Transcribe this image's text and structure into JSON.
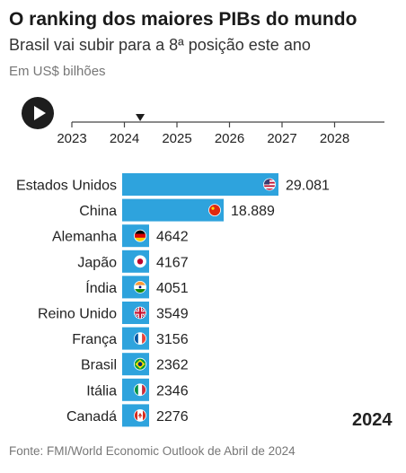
{
  "header": {
    "title": "O ranking dos maiores PIBs do mundo",
    "subtitle": "Brasil vai subir para a 8ª posição este ano",
    "units": "Em US$ bilhões"
  },
  "timeline": {
    "years": [
      "2023",
      "2024",
      "2025",
      "2026",
      "2027",
      "2028"
    ],
    "current_year": "2024",
    "progress_year": 2024.3
  },
  "chart_data": {
    "type": "bar",
    "orientation": "horizontal",
    "title": "O ranking dos maiores PIBs do mundo",
    "subtitle": "Brasil vai subir para a 8ª posição este ano",
    "unit_label": "Em US$ bilhões",
    "categories": [
      "Estados Unidos",
      "China",
      "Alemanha",
      "Japão",
      "Índia",
      "Reino Unido",
      "França",
      "Brasil",
      "Itália",
      "Canadá"
    ],
    "values": [
      29081,
      18889,
      4642,
      4167,
      4051,
      3549,
      3156,
      2362,
      2346,
      2276
    ],
    "value_labels": [
      "29.081",
      "18.889",
      "4642",
      "4167",
      "4051",
      "3549",
      "3156",
      "2362",
      "2346",
      "2276"
    ],
    "flag_icons": [
      "us-flag-icon",
      "china-flag-icon",
      "germany-flag-icon",
      "japan-flag-icon",
      "india-flag-icon",
      "uk-flag-icon",
      "france-flag-icon",
      "brazil-flag-icon",
      "italy-flag-icon",
      "canada-flag-icon"
    ],
    "bar_color": "#2ea3dd",
    "year": "2024",
    "grid": false
  },
  "footer": {
    "source": "Fonte: FMI/World Economic Outlook de Abril de 2024"
  }
}
